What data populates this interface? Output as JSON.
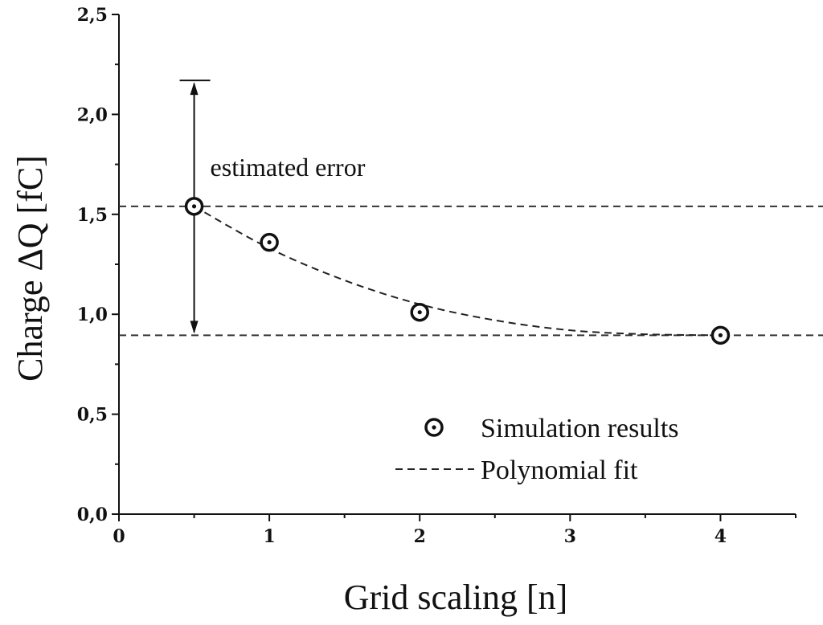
{
  "chart_data": {
    "type": "scatter",
    "xlabel": "Grid scaling [n]",
    "ylabel": "Charge ΔQ [fC]",
    "xlim": [
      0,
      4.5
    ],
    "ylim": [
      0,
      2.5
    ],
    "x_ticks": [
      0,
      1,
      2,
      3,
      4
    ],
    "x_tick_labels": [
      "0",
      "1",
      "2",
      "3",
      "4"
    ],
    "y_ticks": [
      0,
      0.5,
      1.0,
      1.5,
      2.0,
      2.5
    ],
    "y_tick_labels": [
      "0,0",
      "0,5",
      "1,0",
      "1,5",
      "2,0",
      "2,5"
    ],
    "grid": false,
    "legend_position": "bottom-right",
    "series": [
      {
        "name": "Simulation results",
        "kind": "scatter",
        "marker": "circle-dot",
        "x": [
          0.5,
          1,
          2,
          4
        ],
        "y": [
          1.54,
          1.36,
          1.01,
          0.895
        ]
      },
      {
        "name": "Polynomial fit",
        "kind": "line",
        "style": "dashed",
        "x": [
          0.5,
          1,
          1.5,
          2,
          2.5,
          3,
          3.5,
          4
        ],
        "y": [
          1.54,
          1.33,
          1.17,
          1.05,
          0.97,
          0.92,
          0.9,
          0.895
        ]
      }
    ],
    "reference_lines": [
      1.54,
      0.895
    ],
    "annotation": {
      "text": "estimated error",
      "x": 0.5,
      "y_from": 0.895,
      "y_to": 2.17
    }
  }
}
